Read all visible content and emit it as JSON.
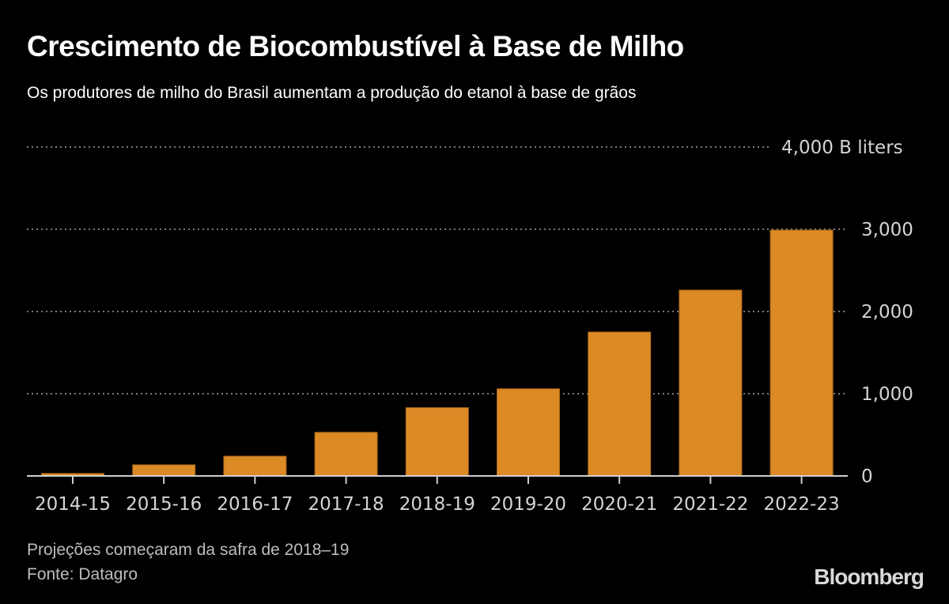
{
  "header": {
    "title": "Crescimento de Biocombustível à Base de Milho",
    "subtitle": "Os produtores de milho do Brasil aumentam a produção do etanol à base de grãos"
  },
  "footer": {
    "note": "Projeções começaram da safra de 2018–19",
    "source": "Fonte:  Datagro",
    "logo": "Bloomberg"
  },
  "colors": {
    "background": "#000000",
    "bar": "#DC8A26",
    "grid": "#7a7a7a",
    "axis": "#cfcfcf",
    "tick_label": "#d4d4d4"
  },
  "chart_data": {
    "type": "bar",
    "title": "Crescimento de Biocombustível à Base de Milho",
    "subtitle": "Os produtores de milho do Brasil aumentam a produção do etanol à base de grãos",
    "xlabel": "",
    "ylabel": "B liters",
    "unit_label": "4,000 B liters",
    "categories": [
      "2014-15",
      "2015-16",
      "2016-17",
      "2017-18",
      "2018-19",
      "2019-20",
      "2020-21",
      "2021-22",
      "2022-23"
    ],
    "values": [
      30,
      135,
      240,
      530,
      830,
      1060,
      1750,
      2260,
      2990
    ],
    "ylim": [
      0,
      4000
    ],
    "yticks": [
      0,
      1000,
      2000,
      3000,
      4000
    ],
    "ytick_labels": [
      "0",
      "1,000",
      "2,000",
      "3,000",
      "4,000 B liters"
    ],
    "grid": true,
    "y_axis_side": "right",
    "legend": "none",
    "annotations": [
      "Projeções começaram da safra de 2018–19"
    ]
  }
}
